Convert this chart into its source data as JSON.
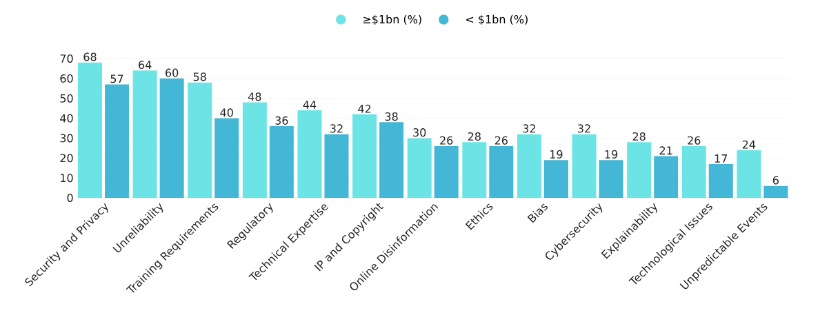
{
  "chart_data": {
    "type": "bar",
    "categories": [
      "Security and Privacy",
      "Unreliability",
      "Training Requirements",
      "Regulatory",
      "Technical Expertise",
      "IP and Copyright",
      "Online Disinformation",
      "Ethics",
      "Bias",
      "Cybersecurity",
      "Explainability",
      "Technological Issues",
      "Unpredictable Events"
    ],
    "series": [
      {
        "name": "≥$1bn (%)",
        "color": "#6ce4e6",
        "values": [
          68,
          64,
          58,
          48,
          44,
          42,
          30,
          28,
          32,
          32,
          28,
          26,
          24
        ]
      },
      {
        "name": "< $1bn (%)",
        "color": "#44b6d6",
        "values": [
          57,
          60,
          40,
          36,
          32,
          38,
          26,
          26,
          19,
          19,
          21,
          17,
          6
        ]
      }
    ],
    "ylim": [
      0,
      70
    ],
    "yticks": [
      0,
      10,
      20,
      30,
      40,
      50,
      60,
      70
    ],
    "grid": "y",
    "legend": "top",
    "marker": "circle",
    "data_labels": true
  }
}
